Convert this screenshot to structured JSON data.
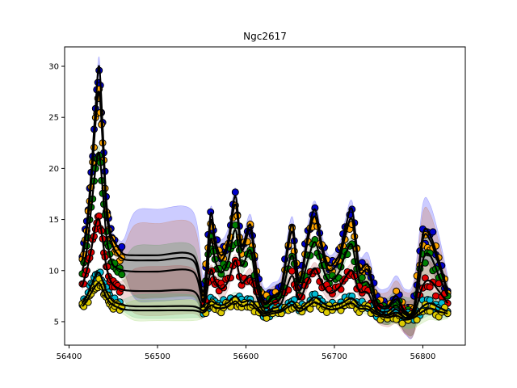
{
  "chart_data": {
    "type": "line",
    "title": "Ngc2617",
    "xlabel": "",
    "ylabel": "",
    "xlim": [
      56395,
      56848
    ],
    "ylim": [
      2.7,
      31.9
    ],
    "xticks": [
      56400,
      56500,
      56600,
      56700,
      56800
    ],
    "yticks": [
      5,
      10,
      15,
      20,
      25,
      30
    ],
    "grid": false,
    "series": [
      {
        "color": "#0000cc",
        "band_color": "#0000ff",
        "x": [
          56415,
          56420,
          56425,
          56430,
          56434,
          56438,
          56442,
          56446,
          56450,
          56455,
          56462,
          56475,
          56500,
          56540,
          56552,
          56560,
          56565,
          56572,
          56580,
          56588,
          56595,
          56605,
          56612,
          56620,
          56630,
          56640,
          56652,
          56660,
          56670,
          56678,
          56686,
          56694,
          56705,
          56712,
          56720,
          56728,
          56738,
          56748,
          56760,
          56770,
          56780,
          56790,
          56800,
          56808,
          56818,
          56828
        ],
        "y": [
          11.8,
          14.5,
          19.5,
          26.0,
          30.0,
          24.0,
          17.0,
          14.0,
          13.0,
          12.3,
          11.6,
          11.5,
          11.5,
          11.5,
          8.0,
          15.5,
          13.0,
          11.5,
          13.0,
          17.3,
          12.5,
          14.5,
          10.0,
          7.0,
          7.5,
          8.5,
          14.5,
          9.0,
          13.5,
          16.0,
          12.5,
          10.5,
          11.5,
          14.0,
          16.0,
          10.5,
          10.5,
          7.0,
          6.5,
          7.5,
          6.0,
          6.5,
          13.5,
          13.5,
          11.0,
          8.0
        ],
        "band": [
          0.6,
          0.6,
          0.7,
          0.8,
          0.9,
          0.8,
          0.7,
          0.6,
          0.6,
          0.8,
          1.5,
          4.3,
          4.5,
          4.3,
          1.5,
          0.7,
          0.8,
          1.5,
          1.2,
          0.8,
          0.9,
          1.0,
          1.5,
          1.4,
          1.3,
          1.2,
          0.8,
          1.2,
          1.0,
          0.8,
          1.0,
          1.0,
          1.0,
          0.9,
          0.8,
          1.0,
          1.2,
          1.5,
          1.8,
          2.0,
          2.2,
          2.6,
          3.0,
          3.0,
          2.5,
          1.5
        ]
      },
      {
        "color": "#ffa500",
        "band_color": "#cc5500",
        "x": [
          56415,
          56420,
          56425,
          56430,
          56434,
          56438,
          56442,
          56446,
          56450,
          56455,
          56462,
          56475,
          56500,
          56540,
          56552,
          56560,
          56565,
          56572,
          56580,
          56588,
          56595,
          56605,
          56612,
          56620,
          56630,
          56640,
          56652,
          56660,
          56670,
          56678,
          56686,
          56694,
          56705,
          56712,
          56720,
          56728,
          56738,
          56748,
          56760,
          56770,
          56780,
          56790,
          56800,
          56808,
          56818,
          56828
        ],
        "y": [
          11.0,
          14.0,
          18.5,
          24.5,
          27.5,
          22.5,
          16.0,
          13.5,
          12.3,
          11.6,
          11.1,
          11.0,
          11.0,
          11.0,
          7.6,
          14.8,
          12.5,
          11.0,
          12.5,
          16.5,
          12.0,
          14.0,
          9.6,
          6.8,
          7.3,
          8.2,
          13.8,
          8.8,
          13.0,
          15.3,
          12.0,
          10.0,
          11.0,
          13.3,
          15.0,
          10.0,
          10.0,
          6.8,
          6.3,
          7.2,
          5.9,
          6.3,
          13.0,
          13.0,
          10.6,
          7.8
        ],
        "band": [
          0.5,
          0.5,
          0.6,
          0.7,
          0.8,
          0.7,
          0.6,
          0.5,
          0.5,
          0.7,
          1.3,
          3.5,
          3.6,
          3.5,
          1.3,
          0.6,
          0.7,
          1.3,
          1.0,
          0.7,
          0.8,
          0.9,
          1.3,
          1.2,
          1.1,
          1.0,
          0.7,
          1.0,
          0.9,
          0.7,
          0.9,
          0.9,
          0.9,
          0.8,
          0.7,
          0.9,
          1.0,
          1.3,
          1.6,
          1.8,
          2.0,
          2.4,
          2.6,
          2.6,
          2.2,
          1.3
        ]
      },
      {
        "color": "#008000",
        "band_color": "#2e8b2e",
        "x": [
          56415,
          56420,
          56425,
          56430,
          56434,
          56438,
          56442,
          56446,
          56450,
          56455,
          56462,
          56475,
          56500,
          56540,
          56552,
          56560,
          56565,
          56572,
          56580,
          56588,
          56595,
          56605,
          56612,
          56620,
          56630,
          56640,
          56652,
          56660,
          56670,
          56678,
          56686,
          56694,
          56705,
          56712,
          56720,
          56728,
          56738,
          56748,
          56760,
          56770,
          56780,
          56790,
          56800,
          56808,
          56818,
          56828
        ],
        "y": [
          10.0,
          12.0,
          16.0,
          20.0,
          21.5,
          18.0,
          13.5,
          11.5,
          10.5,
          10.2,
          10.0,
          9.9,
          9.9,
          9.9,
          7.0,
          13.0,
          11.0,
          9.8,
          11.0,
          14.0,
          10.5,
          12.0,
          8.5,
          6.4,
          6.8,
          7.5,
          11.5,
          8.0,
          11.0,
          12.8,
          10.5,
          9.0,
          9.8,
          11.5,
          12.5,
          9.0,
          8.8,
          6.3,
          6.0,
          6.6,
          5.7,
          6.0,
          11.0,
          11.5,
          9.5,
          7.5
        ],
        "band": [
          0.5,
          0.5,
          0.5,
          0.6,
          0.7,
          0.6,
          0.5,
          0.5,
          0.5,
          0.6,
          1.1,
          2.5,
          2.6,
          2.5,
          1.1,
          0.5,
          0.6,
          1.1,
          0.9,
          0.6,
          0.7,
          0.8,
          1.1,
          1.0,
          0.9,
          0.9,
          0.6,
          0.9,
          0.8,
          0.6,
          0.8,
          0.8,
          0.8,
          0.7,
          0.6,
          0.8,
          0.9,
          1.1,
          1.3,
          1.5,
          1.7,
          2.0,
          2.0,
          2.0,
          1.8,
          1.1
        ]
      },
      {
        "color": "#e00000",
        "band_color": "#b03030",
        "x": [
          56415,
          56420,
          56425,
          56430,
          56434,
          56438,
          56442,
          56446,
          56450,
          56455,
          56462,
          56475,
          56500,
          56540,
          56552,
          56560,
          56565,
          56572,
          56580,
          56588,
          56595,
          56605,
          56612,
          56620,
          56630,
          56640,
          56652,
          56660,
          56670,
          56678,
          56686,
          56694,
          56705,
          56712,
          56720,
          56728,
          56738,
          56748,
          56760,
          56770,
          56780,
          56790,
          56800,
          56808,
          56818,
          56828
        ],
        "y": [
          8.5,
          10.0,
          12.0,
          14.5,
          15.0,
          13.0,
          10.5,
          9.2,
          8.6,
          8.3,
          8.1,
          8.0,
          8.0,
          8.0,
          6.5,
          10.0,
          9.0,
          8.2,
          9.0,
          11.0,
          8.8,
          9.5,
          7.5,
          6.0,
          6.3,
          6.8,
          9.5,
          7.2,
          9.0,
          10.2,
          8.8,
          7.8,
          8.3,
          9.3,
          10.0,
          8.0,
          7.8,
          6.0,
          5.7,
          6.2,
          5.4,
          5.7,
          8.5,
          9.0,
          8.0,
          6.8
        ],
        "band": [
          0.4,
          0.4,
          0.5,
          0.6,
          0.6,
          0.6,
          0.5,
          0.4,
          0.4,
          0.6,
          1.0,
          2.2,
          2.4,
          2.2,
          1.0,
          0.5,
          0.6,
          1.0,
          0.8,
          0.6,
          0.6,
          0.7,
          1.0,
          0.9,
          0.8,
          0.8,
          0.6,
          0.8,
          0.7,
          0.6,
          0.7,
          0.7,
          0.7,
          0.6,
          0.6,
          0.7,
          0.8,
          1.0,
          1.2,
          1.4,
          1.6,
          1.8,
          1.9,
          1.9,
          1.6,
          1.0
        ]
      },
      {
        "color": "#00bcd4",
        "band_color": "#3fbf7f",
        "x": [
          56415,
          56420,
          56425,
          56430,
          56434,
          56438,
          56442,
          56446,
          56450,
          56455,
          56462,
          56475,
          56500,
          56540,
          56552,
          56560,
          56565,
          56572,
          56580,
          56588,
          56595,
          56605,
          56612,
          56620,
          56630,
          56640,
          56652,
          56660,
          56670,
          56678,
          56686,
          56694,
          56705,
          56712,
          56720,
          56728,
          56738,
          56748,
          56760,
          56770,
          56780,
          56790,
          56800,
          56808,
          56818,
          56828
        ],
        "y": [
          6.8,
          7.5,
          8.5,
          9.5,
          9.8,
          9.0,
          8.0,
          7.4,
          7.0,
          6.8,
          6.6,
          6.5,
          6.5,
          6.5,
          6.1,
          7.0,
          6.8,
          6.6,
          6.9,
          7.5,
          6.9,
          7.1,
          6.5,
          5.8,
          6.0,
          6.2,
          7.0,
          6.3,
          6.9,
          7.4,
          6.9,
          6.5,
          6.7,
          7.0,
          7.3,
          6.6,
          6.5,
          5.9,
          5.6,
          5.9,
          5.4,
          5.6,
          6.5,
          6.8,
          6.4,
          6.0
        ],
        "band": [
          0.3,
          0.3,
          0.3,
          0.4,
          0.4,
          0.4,
          0.3,
          0.3,
          0.3,
          0.4,
          0.6,
          1.1,
          1.2,
          1.1,
          0.6,
          0.3,
          0.4,
          0.6,
          0.5,
          0.4,
          0.4,
          0.5,
          0.6,
          0.6,
          0.5,
          0.5,
          0.4,
          0.5,
          0.5,
          0.4,
          0.5,
          0.5,
          0.5,
          0.4,
          0.4,
          0.5,
          0.5,
          0.6,
          0.8,
          0.9,
          1.0,
          1.1,
          1.2,
          1.2,
          1.0,
          0.6
        ]
      },
      {
        "color": "#ddcc00",
        "band_color": "#88cc44",
        "x": [
          56415,
          56420,
          56425,
          56430,
          56434,
          56438,
          56442,
          56446,
          56450,
          56455,
          56462,
          56475,
          56500,
          56540,
          56552,
          56560,
          56565,
          56572,
          56580,
          56588,
          56595,
          56605,
          56612,
          56620,
          56630,
          56640,
          56652,
          56660,
          56670,
          56678,
          56686,
          56694,
          56705,
          56712,
          56720,
          56728,
          56738,
          56748,
          56760,
          56770,
          56780,
          56790,
          56800,
          56808,
          56818,
          56828
        ],
        "y": [
          6.5,
          7.0,
          7.8,
          8.5,
          8.8,
          8.2,
          7.4,
          6.9,
          6.6,
          6.4,
          6.2,
          6.1,
          6.1,
          6.1,
          5.9,
          6.6,
          6.4,
          6.3,
          6.5,
          7.0,
          6.5,
          6.7,
          6.2,
          5.6,
          5.8,
          6.0,
          6.6,
          6.0,
          6.5,
          6.9,
          6.5,
          6.2,
          6.3,
          6.6,
          6.8,
          6.3,
          6.2,
          5.7,
          5.4,
          5.6,
          5.2,
          5.4,
          6.0,
          6.3,
          6.0,
          5.8
        ],
        "band": [
          0.3,
          0.3,
          0.3,
          0.3,
          0.4,
          0.3,
          0.3,
          0.3,
          0.3,
          0.4,
          0.5,
          1.0,
          1.0,
          1.0,
          0.5,
          0.3,
          0.3,
          0.5,
          0.4,
          0.3,
          0.4,
          0.4,
          0.5,
          0.5,
          0.5,
          0.4,
          0.3,
          0.4,
          0.4,
          0.3,
          0.4,
          0.4,
          0.4,
          0.4,
          0.3,
          0.4,
          0.5,
          0.5,
          0.7,
          0.8,
          0.9,
          1.0,
          1.1,
          1.1,
          0.9,
          0.5
        ]
      }
    ]
  }
}
